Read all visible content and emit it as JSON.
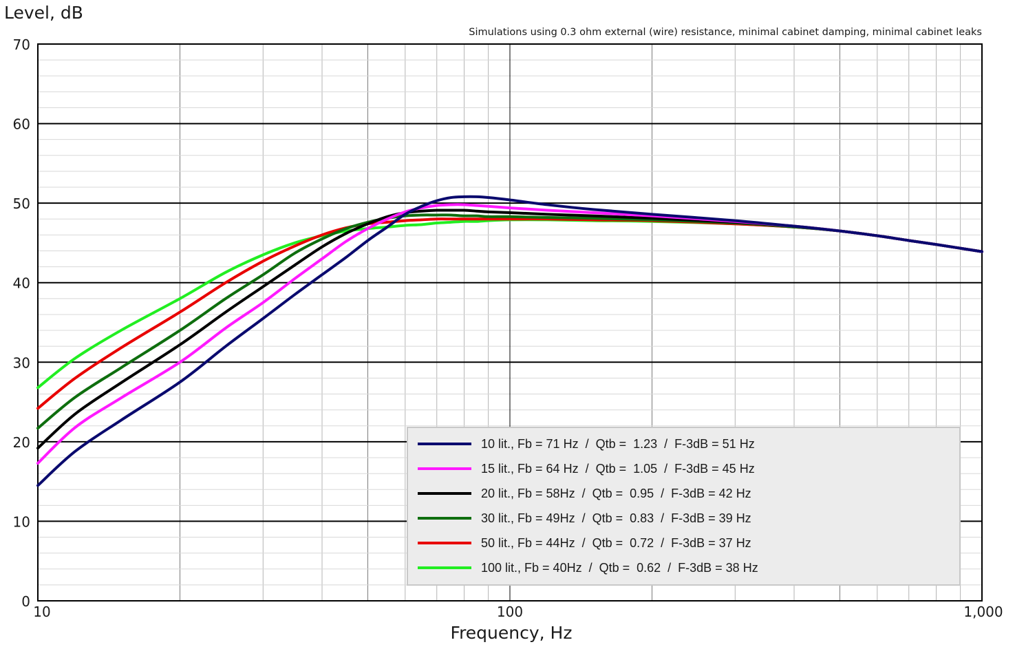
{
  "chart_data": {
    "type": "line",
    "subtitle": "Simulations using 0.3 ohm external (wire) resistance, minimal cabinet damping, minimal cabinet leaks",
    "ylabel": "Level, dB",
    "xlabel": "Frequency, Hz",
    "x_scale": "log",
    "xlim": [
      10,
      1000
    ],
    "ylim": [
      0,
      70
    ],
    "grid": true,
    "legend_position": "bottom-right",
    "y_ticks": [
      "0",
      "10",
      "20",
      "30",
      "40",
      "50",
      "60",
      "70"
    ],
    "x_ticks": [
      "10",
      "100",
      "1,000"
    ],
    "x": [
      10,
      12,
      15,
      20,
      25,
      30,
      35,
      40,
      45,
      50,
      55,
      60,
      65,
      70,
      75,
      80,
      85,
      90,
      100,
      120,
      150,
      200,
      300,
      400,
      500,
      600,
      700,
      800,
      1000
    ],
    "series": [
      {
        "name": "10 lit., Fb = 71 Hz  /  Qtb =  1.23  /  F-3dB = 51 Hz",
        "color": "#0a0a6e",
        "values": [
          14.5,
          18.8,
          22.7,
          27.5,
          32.0,
          35.5,
          38.5,
          41.0,
          43.2,
          45.3,
          47.0,
          48.6,
          49.6,
          50.3,
          50.7,
          50.8,
          50.8,
          50.7,
          50.4,
          49.8,
          49.2,
          48.6,
          47.8,
          47.1,
          46.5,
          45.9,
          45.3,
          44.8,
          43.9
        ]
      },
      {
        "name": "15 lit., Fb = 64 Hz  /  Qtb =  1.05  /  F-3dB = 45 Hz",
        "color": "#ff1aff",
        "values": [
          17.3,
          21.8,
          25.5,
          30.0,
          34.3,
          37.5,
          40.5,
          43.0,
          45.2,
          46.8,
          48.0,
          48.9,
          49.4,
          49.7,
          49.8,
          49.8,
          49.7,
          49.6,
          49.4,
          49.1,
          48.8,
          48.4,
          47.7,
          47.1,
          46.5,
          45.9,
          45.3,
          44.8,
          43.9
        ]
      },
      {
        "name": "20 lit., Fb = 58Hz  /  Qtb =  0.95  /  F-3dB = 42 Hz",
        "color": "#000000",
        "values": [
          19.2,
          23.5,
          27.4,
          32.2,
          36.3,
          39.5,
          42.2,
          44.5,
          46.2,
          47.4,
          48.3,
          48.8,
          49.0,
          49.1,
          49.1,
          49.1,
          49.0,
          48.9,
          48.8,
          48.6,
          48.4,
          48.1,
          47.6,
          47.1,
          46.5,
          45.9,
          45.3,
          44.8,
          43.9
        ]
      },
      {
        "name": "30 lit., Fb = 49Hz  /  Qtb =  0.83  /  F-3dB = 39 Hz",
        "color": "#0e6e0e",
        "values": [
          21.7,
          25.6,
          29.3,
          34.0,
          38.0,
          41.0,
          43.7,
          45.5,
          46.8,
          47.6,
          48.1,
          48.4,
          48.5,
          48.5,
          48.5,
          48.4,
          48.4,
          48.3,
          48.3,
          48.2,
          48.1,
          47.9,
          47.5,
          47.0,
          46.5,
          45.9,
          45.3,
          44.8,
          43.9
        ]
      },
      {
        "name": "50 lit., Fb = 44Hz  /  Qtb =  0.72  /  F-3dB = 37 Hz",
        "color": "#e80000",
        "values": [
          24.2,
          28.0,
          31.8,
          36.3,
          40.0,
          42.7,
          44.6,
          46.0,
          46.9,
          47.4,
          47.6,
          47.8,
          47.9,
          48.0,
          48.0,
          48.0,
          48.0,
          48.0,
          48.0,
          48.0,
          47.9,
          47.8,
          47.4,
          47.0,
          46.5,
          45.9,
          45.3,
          44.8,
          43.9
        ]
      },
      {
        "name": "100 lit., Fb = 40Hz  /  Qtb =  0.62  /  F-3dB = 38 Hz",
        "color": "#22ee22",
        "values": [
          26.8,
          30.5,
          34.0,
          38.0,
          41.3,
          43.5,
          45.0,
          45.9,
          46.5,
          46.8,
          47.0,
          47.2,
          47.3,
          47.5,
          47.6,
          47.7,
          47.7,
          47.8,
          47.9,
          47.9,
          47.8,
          47.7,
          47.4,
          47.0,
          46.5,
          45.9,
          45.3,
          44.8,
          43.9
        ]
      }
    ]
  }
}
